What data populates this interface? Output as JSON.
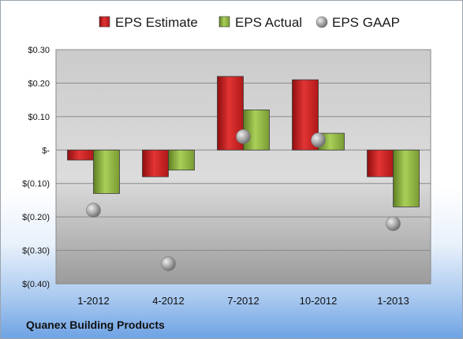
{
  "chart_data": {
    "type": "bar",
    "categories": [
      "1-2012",
      "4-2012",
      "7-2012",
      "10-2012",
      "1-2013"
    ],
    "series": [
      {
        "name": "EPS Estimate",
        "values": [
          -0.03,
          -0.08,
          0.22,
          0.21,
          -0.08
        ],
        "color": "#d42020",
        "kind": "bar"
      },
      {
        "name": "EPS Actual",
        "values": [
          -0.13,
          -0.06,
          0.12,
          0.05,
          -0.17
        ],
        "color": "#8fb840",
        "kind": "bar"
      },
      {
        "name": "EPS GAAP",
        "values": [
          -0.18,
          -0.34,
          0.04,
          0.03,
          -0.22
        ],
        "color": "#a8a8a8",
        "kind": "marker"
      }
    ],
    "ylim": [
      -0.4,
      0.3
    ],
    "yticks": [
      {
        "value": 0.3,
        "label": "$0.30"
      },
      {
        "value": 0.2,
        "label": "$0.20"
      },
      {
        "value": 0.1,
        "label": "$0.10"
      },
      {
        "value": 0.0,
        "label": "$-"
      },
      {
        "value": -0.1,
        "label": "$(0.10)"
      },
      {
        "value": -0.2,
        "label": "$(0.20)"
      },
      {
        "value": -0.3,
        "label": "$(0.30)"
      },
      {
        "value": -0.4,
        "label": "$(0.40)"
      }
    ],
    "grid": true,
    "legend_position": "top",
    "footer": "Quanex Building Products"
  }
}
